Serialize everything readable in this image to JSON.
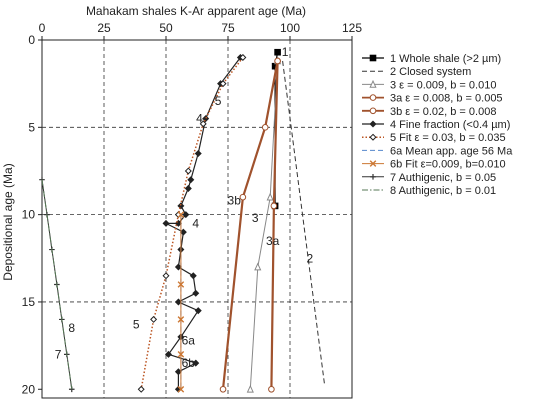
{
  "chart_data": {
    "type": "line",
    "title": "",
    "xlabel": "Mahakam shales K-Ar apparent age (Ma)",
    "ylabel": "Depositional age (Ma)",
    "xlim": [
      0,
      125
    ],
    "ylim": [
      0,
      20.5
    ],
    "x_axis_position": "top",
    "y_inverted": true,
    "grid": "dashed",
    "legend_placement": "right",
    "xticks": [
      0,
      25,
      50,
      75,
      100,
      125
    ],
    "yticks": [
      0,
      5,
      10,
      15,
      20
    ],
    "gridlines_x": [
      25,
      50,
      75,
      100
    ],
    "gridlines_y": [
      5,
      10,
      15
    ],
    "series": [
      {
        "id": "s1",
        "name": "1 Whole shale (>2 µm)",
        "color": "#000000",
        "line": "solid",
        "marker": "square-filled",
        "width": 1.2,
        "points": [
          [
            95,
            0.7
          ],
          [
            94,
            1.5
          ],
          [
            94,
            9.5
          ]
        ]
      },
      {
        "id": "s2",
        "name": "2 Closed system",
        "color": "#333333",
        "line": "dashed",
        "marker": "none",
        "width": 1,
        "points": [
          [
            97,
            1.2
          ],
          [
            114,
            19.8
          ]
        ]
      },
      {
        "id": "s3",
        "name": "3 ε = 0.009, b = 0.010",
        "color": "#888888",
        "line": "solid",
        "marker": "triangle-open",
        "width": 1,
        "points": [
          [
            95,
            1.2
          ],
          [
            92,
            9
          ],
          [
            87,
            13
          ],
          [
            84,
            20
          ]
        ]
      },
      {
        "id": "s3a",
        "name": "3a ε = 0.008, b = 0.005",
        "color": "#a0522d",
        "line": "solid",
        "marker": "circle-open",
        "width": 2.2,
        "points": [
          [
            95,
            1.2
          ],
          [
            93.5,
            9.5
          ],
          [
            92.5,
            20
          ]
        ]
      },
      {
        "id": "s3b",
        "name": "3b ε = 0.02, b = 0.008",
        "color": "#a0522d",
        "line": "solid",
        "marker": "circle-open",
        "width": 2.2,
        "points": [
          [
            95,
            1.2
          ],
          [
            90,
            5
          ],
          [
            81,
            9
          ],
          [
            73,
            20
          ]
        ]
      },
      {
        "id": "s4",
        "name": "4 Fine fraction (<0.4 µm)",
        "color": "#222222",
        "line": "solid",
        "marker": "diamond-filled",
        "width": 1.2,
        "points": [
          [
            80,
            1
          ],
          [
            72,
            2.5
          ],
          [
            66,
            4.5
          ],
          [
            63,
            6.5
          ],
          [
            60,
            8
          ],
          [
            59,
            8.5
          ],
          [
            56,
            9.5
          ],
          [
            58,
            10
          ],
          [
            55,
            10.5
          ],
          [
            50,
            10.5
          ],
          [
            57,
            11
          ],
          [
            56,
            12
          ],
          [
            55,
            13
          ],
          [
            61,
            13.5
          ],
          [
            62,
            14.5
          ],
          [
            55,
            15
          ],
          [
            63,
            15.5
          ],
          [
            56,
            17
          ],
          [
            51,
            18
          ],
          [
            62,
            18.5
          ],
          [
            55,
            19
          ],
          [
            55,
            20
          ]
        ]
      },
      {
        "id": "s5",
        "name": "5 Fit ε = 0.03, b = 0.035",
        "color": "#bb5522",
        "line": "dotted",
        "marker": "diamond-open",
        "width": 1.5,
        "points": [
          [
            81,
            1
          ],
          [
            73,
            2.5
          ],
          [
            65,
            4.8
          ],
          [
            59,
            7.5
          ],
          [
            55,
            10
          ],
          [
            50,
            13.5
          ],
          [
            45,
            16
          ],
          [
            40,
            20
          ]
        ]
      },
      {
        "id": "s6a",
        "name": "6a Mean app. age 56 Ma",
        "color": "#5588cc",
        "line": "dashed",
        "marker": "none",
        "width": 1,
        "points": [
          [
            56,
            10
          ],
          [
            56,
            20
          ]
        ]
      },
      {
        "id": "s6b",
        "name": "6b Fit ε=0.009, b=0.010",
        "color": "#cc7733",
        "line": "solid",
        "marker": "x",
        "width": 1,
        "points": [
          [
            56,
            10
          ],
          [
            56,
            14
          ],
          [
            56,
            16
          ],
          [
            56,
            18
          ],
          [
            56,
            20
          ]
        ]
      },
      {
        "id": "s7",
        "name": "7 Authigenic, b = 0.05",
        "color": "#333333",
        "line": "solid",
        "marker": "plus",
        "width": 1,
        "points": [
          [
            0,
            8
          ],
          [
            2,
            10
          ],
          [
            4,
            12
          ],
          [
            6,
            14
          ],
          [
            8,
            16
          ],
          [
            10,
            18
          ],
          [
            12,
            20
          ]
        ]
      },
      {
        "id": "s8",
        "name": "8 Authigenic, b = 0.01",
        "color": "#557755",
        "line": "dashdot",
        "marker": "none",
        "width": 1,
        "points": [
          [
            0,
            8
          ],
          [
            12,
            20
          ]
        ]
      }
    ],
    "annotations": [
      {
        "text": "1",
        "x": 98,
        "y": 0.7
      },
      {
        "text": "5",
        "x": 71,
        "y": 3.5
      },
      {
        "text": "4",
        "x": 63.5,
        "y": 4.5
      },
      {
        "text": "3b",
        "x": 77.5,
        "y": 9.2
      },
      {
        "text": "3",
        "x": 86,
        "y": 10.2
      },
      {
        "text": "4",
        "x": 62,
        "y": 10.5
      },
      {
        "text": "3a",
        "x": 93,
        "y": 11.5
      },
      {
        "text": "2",
        "x": 108,
        "y": 12.5
      },
      {
        "text": "8",
        "x": 12,
        "y": 16.5
      },
      {
        "text": "5",
        "x": 38,
        "y": 16.3
      },
      {
        "text": "6a",
        "x": 59,
        "y": 17.2
      },
      {
        "text": "7",
        "x": 6.5,
        "y": 18
      },
      {
        "text": "6b",
        "x": 59,
        "y": 18.5
      }
    ]
  }
}
